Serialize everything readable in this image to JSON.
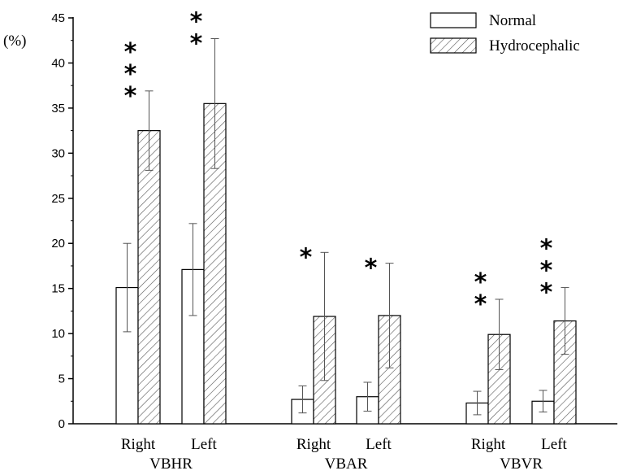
{
  "chart_data": {
    "type": "bar",
    "ylabel": "(%)",
    "ylim": [
      0,
      45
    ],
    "yticks": [
      0,
      5,
      10,
      15,
      20,
      25,
      30,
      35,
      40,
      45
    ],
    "legend_position": "top-right",
    "grid": false,
    "groups": [
      "VBHR",
      "VBAR",
      "VBVR"
    ],
    "categories": [
      "Right",
      "Left",
      "Right",
      "Left",
      "Right",
      "Left"
    ],
    "category_groups": [
      "VBHR",
      "VBHR",
      "VBAR",
      "VBAR",
      "VBVR",
      "VBVR"
    ],
    "series": [
      {
        "name": "Normal",
        "pattern": "none",
        "values": [
          15.1,
          17.1,
          2.7,
          3.0,
          2.3,
          2.5
        ],
        "errors": [
          4.9,
          5.1,
          1.5,
          1.6,
          1.3,
          1.2
        ]
      },
      {
        "name": "Hydrocephalic",
        "pattern": "hatched",
        "values": [
          32.5,
          35.5,
          11.9,
          12.0,
          9.9,
          11.4
        ],
        "errors": [
          4.4,
          7.2,
          7.1,
          5.8,
          3.9,
          3.7
        ]
      }
    ],
    "significance": [
      {
        "category_index": 0,
        "label": "***"
      },
      {
        "category_index": 1,
        "label": "**"
      },
      {
        "category_index": 2,
        "label": "*"
      },
      {
        "category_index": 3,
        "label": "*"
      },
      {
        "category_index": 4,
        "label": "**"
      },
      {
        "category_index": 5,
        "label": "***"
      }
    ]
  }
}
